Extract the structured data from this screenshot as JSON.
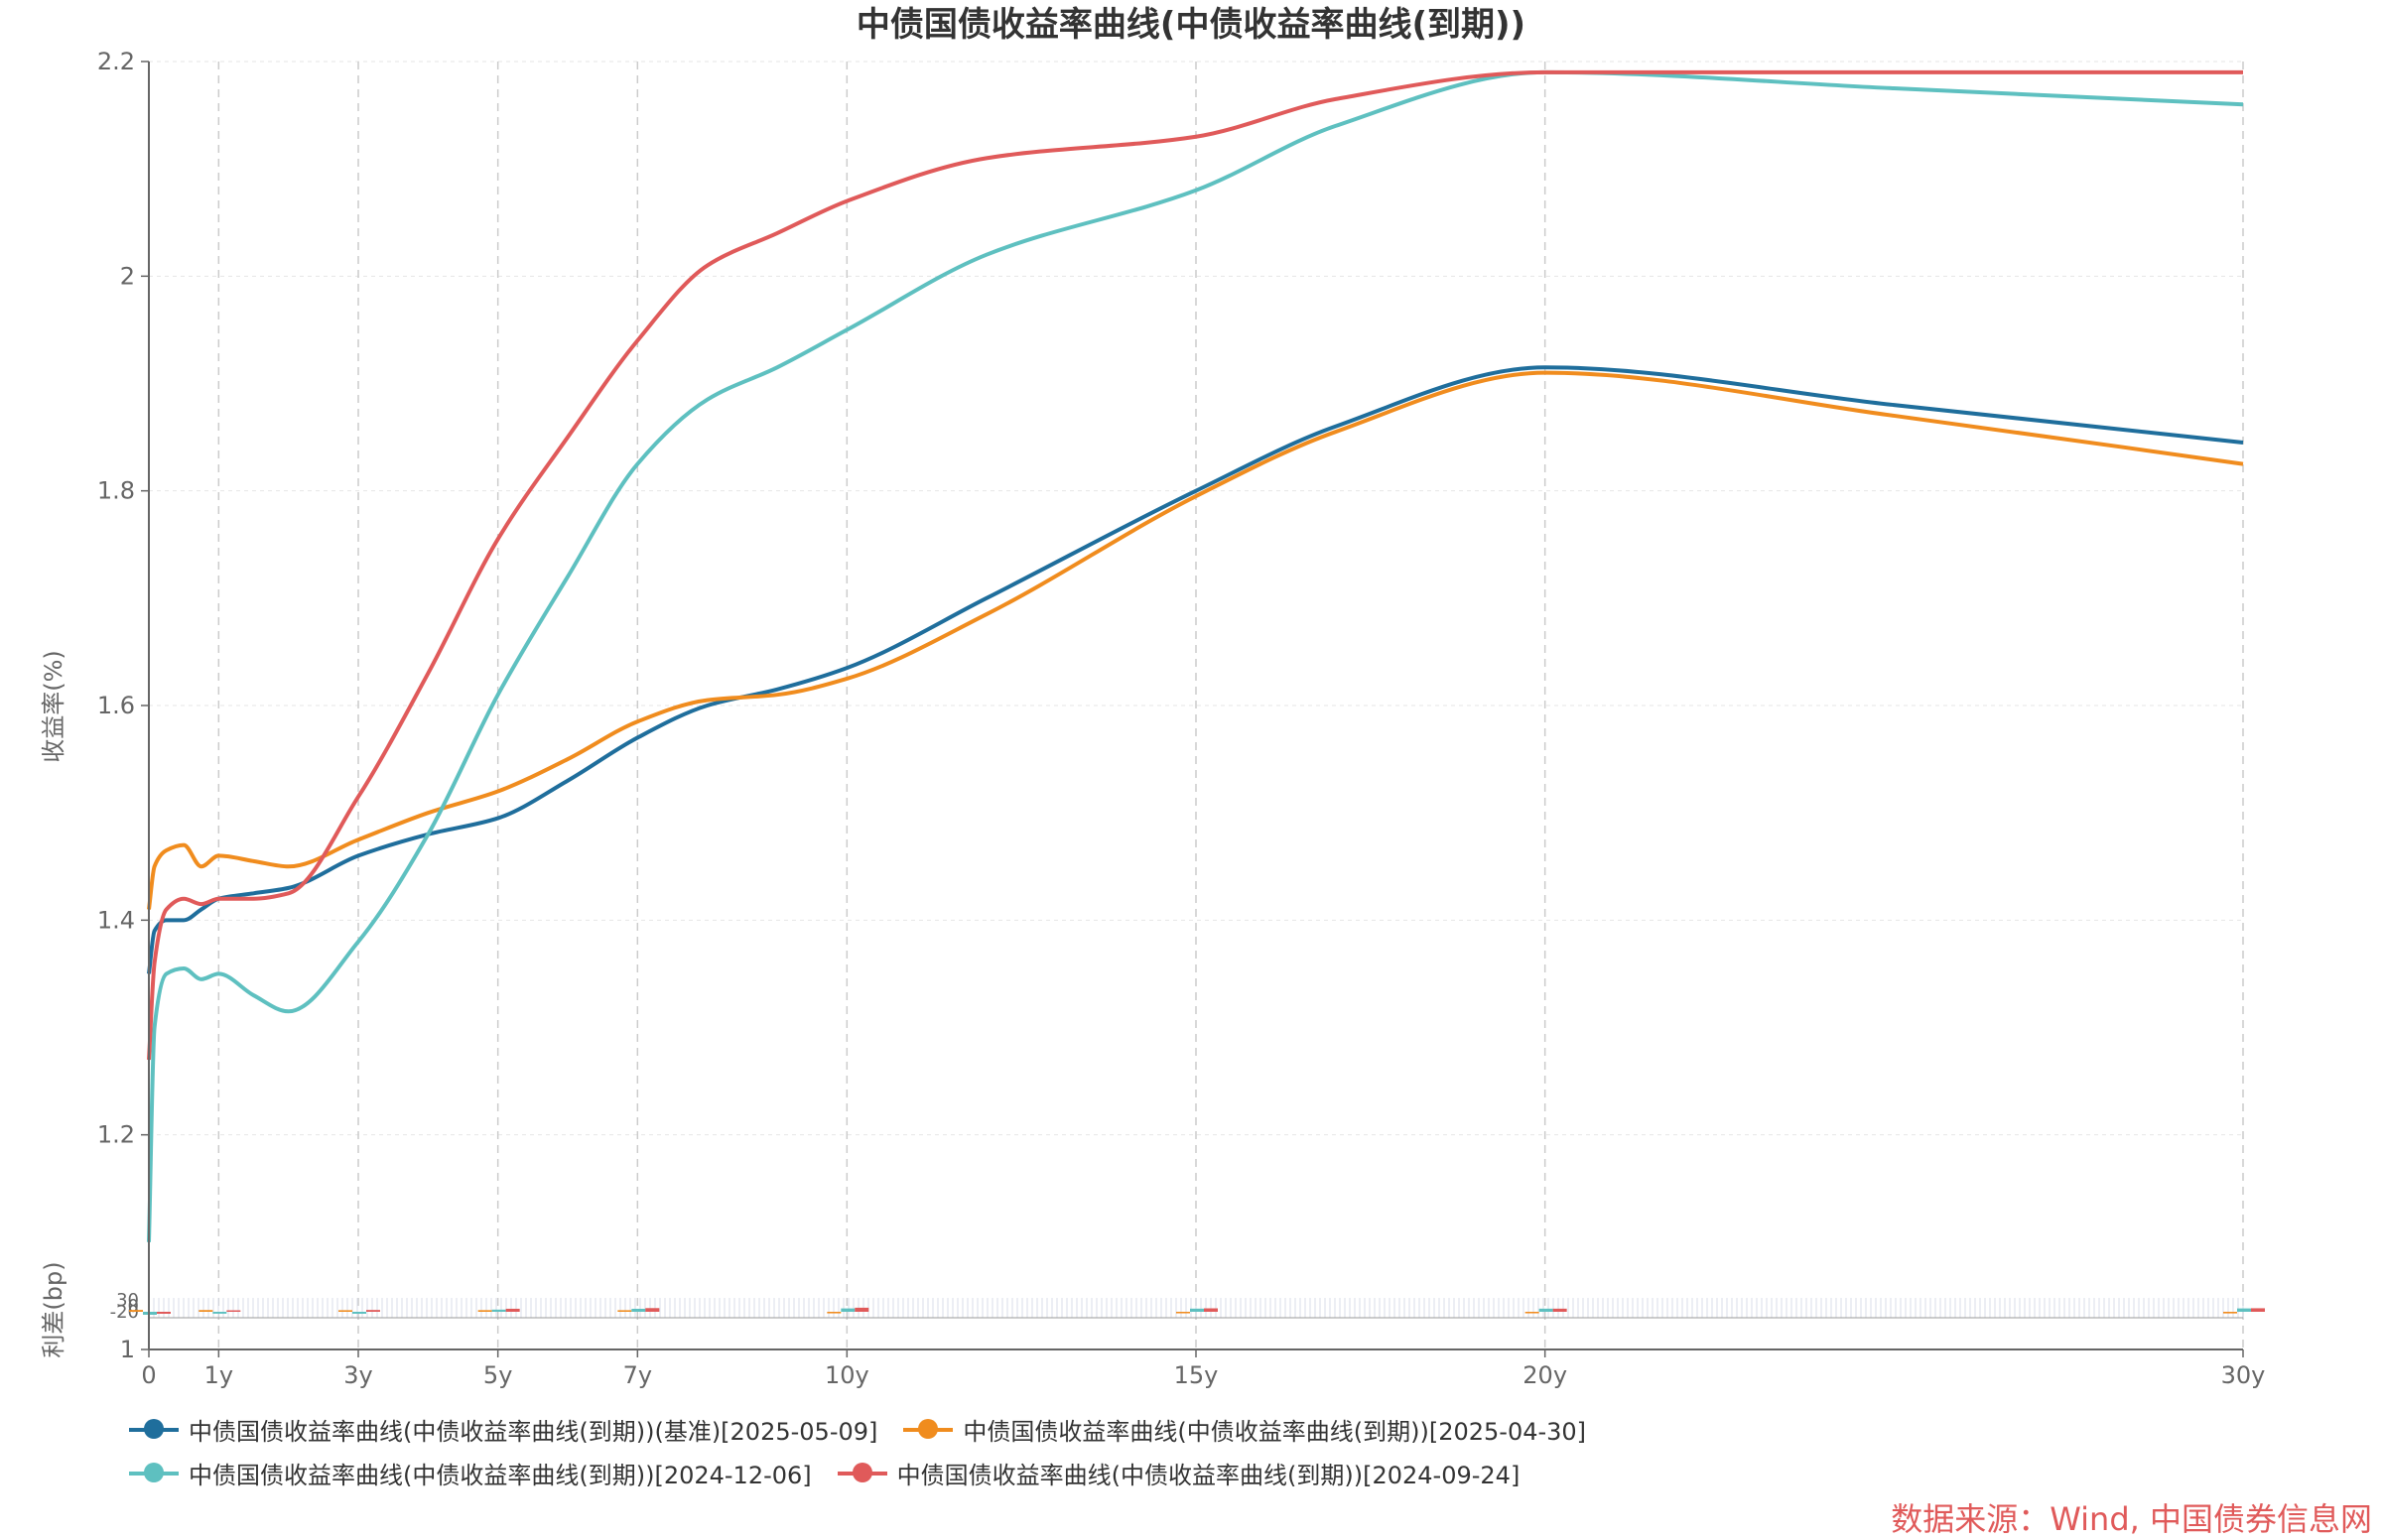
{
  "chart_data": {
    "type": "line",
    "title": "中债国债收益率曲线(中债收益率曲线(到期))",
    "ylabel": "收益率(%)",
    "ylabel_spread": "利差(bp)",
    "ylim": [
      1.0,
      2.2
    ],
    "y_ticks": [
      "1",
      "1.2",
      "1.4",
      "1.6",
      "1.8",
      "2",
      "2.2"
    ],
    "x_range": [
      0,
      30
    ],
    "x_ticks": [
      {
        "value": 0,
        "label": "0"
      },
      {
        "value": 1,
        "label": "1y"
      },
      {
        "value": 3,
        "label": "3y"
      },
      {
        "value": 5,
        "label": "5y"
      },
      {
        "value": 7,
        "label": "7y"
      },
      {
        "value": 10,
        "label": "10y"
      },
      {
        "value": 15,
        "label": "15y"
      },
      {
        "value": 20,
        "label": "20y"
      },
      {
        "value": 30,
        "label": "30y"
      }
    ],
    "spread_tick_labels": [
      "30",
      "0",
      "-20"
    ],
    "series": [
      {
        "name": "中债国债收益率曲线(中债收益率曲线(到期))(基准)[2025-05-09]",
        "color": "#1f6e9c",
        "x": [
          0,
          0.08,
          0.25,
          0.5,
          0.75,
          1,
          1.5,
          2,
          3,
          4,
          5,
          6,
          7,
          8,
          9,
          10,
          12,
          15,
          17,
          20,
          25,
          30
        ],
        "y": [
          1.35,
          1.39,
          1.4,
          1.4,
          1.41,
          1.42,
          1.425,
          1.43,
          1.46,
          1.48,
          1.495,
          1.53,
          1.57,
          1.6,
          1.615,
          1.635,
          1.7,
          1.8,
          1.86,
          1.915,
          1.88,
          1.845
        ]
      },
      {
        "name": "中债国债收益率曲线(中债收益率曲线(到期))[2025-04-30]",
        "color": "#f08c1e",
        "x": [
          0,
          0.08,
          0.25,
          0.5,
          0.75,
          1,
          1.5,
          2,
          3,
          4,
          5,
          6,
          7,
          8,
          9,
          10,
          12,
          15,
          17,
          20,
          25,
          30
        ],
        "y": [
          1.41,
          1.45,
          1.465,
          1.47,
          1.45,
          1.46,
          1.455,
          1.45,
          1.475,
          1.5,
          1.52,
          1.55,
          1.585,
          1.605,
          1.61,
          1.625,
          1.685,
          1.795,
          1.855,
          1.91,
          1.87,
          1.825
        ]
      },
      {
        "name": "中债国债收益率曲线(中债收益率曲线(到期))[2024-12-06]",
        "color": "#5ec0c0",
        "x": [
          0,
          0.08,
          0.25,
          0.5,
          0.75,
          1,
          1.5,
          2,
          3,
          4,
          5,
          6,
          7,
          8,
          9,
          10,
          12,
          15,
          17,
          20,
          25,
          30
        ],
        "y": [
          1.1,
          1.3,
          1.35,
          1.355,
          1.345,
          1.35,
          1.33,
          1.315,
          1.38,
          1.48,
          1.61,
          1.72,
          1.825,
          1.885,
          1.915,
          1.95,
          2.02,
          2.08,
          2.14,
          2.19,
          2.175,
          2.16
        ]
      },
      {
        "name": "中债国债收益率曲线(中债收益率曲线(到期))[2024-09-24]",
        "color": "#e05a5a",
        "x": [
          0,
          0.08,
          0.25,
          0.5,
          0.75,
          1,
          1.5,
          2,
          3,
          4,
          5,
          6,
          7,
          8,
          9,
          10,
          12,
          15,
          17,
          20,
          25,
          30
        ],
        "y": [
          1.27,
          1.36,
          1.41,
          1.42,
          1.415,
          1.42,
          1.42,
          1.425,
          1.515,
          1.63,
          1.755,
          1.85,
          1.94,
          2.01,
          2.04,
          2.07,
          2.11,
          2.13,
          2.165,
          2.19,
          2.19,
          2.19
        ]
      }
    ],
    "legend_position": "bottom",
    "grid": true
  },
  "source_note": "数据来源：Wind, 中国债券信息网"
}
